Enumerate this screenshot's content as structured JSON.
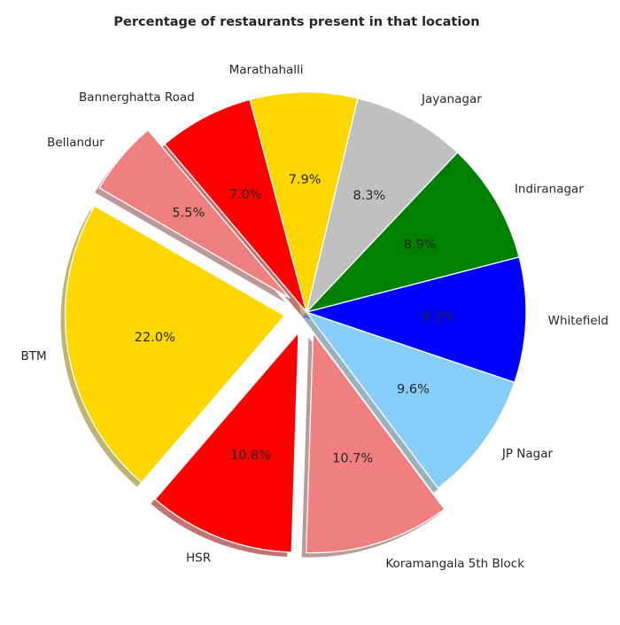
{
  "chart_data": {
    "type": "pie",
    "title": "Percentage of restaurants present in that location",
    "categories": [
      "BTM",
      "HSR",
      "Koramangala 5th Block",
      "JP Nagar",
      "Whitefield",
      "Indiranagar",
      "Jayanagar",
      "Marathahalli",
      "Bannerghatta Road",
      "Bellandur"
    ],
    "values": [
      22.0,
      10.8,
      10.7,
      9.6,
      9.2,
      8.9,
      8.3,
      7.9,
      7.0,
      5.5
    ],
    "labels": [
      "22.0%",
      "10.8%",
      "10.7%",
      "9.6%",
      "9.2%",
      "8.9%",
      "8.3%",
      "7.9%",
      "7.0%",
      "5.5%"
    ],
    "colors": [
      "#ffd700",
      "#ff0000",
      "#f08080",
      "#87cefa",
      "#0000ff",
      "#008000",
      "#c0c0c0",
      "#ffd700",
      "#ff0000",
      "#f08080"
    ],
    "exploded": [
      true,
      true,
      true,
      false,
      false,
      false,
      false,
      false,
      false,
      true
    ],
    "shadow": true
  }
}
